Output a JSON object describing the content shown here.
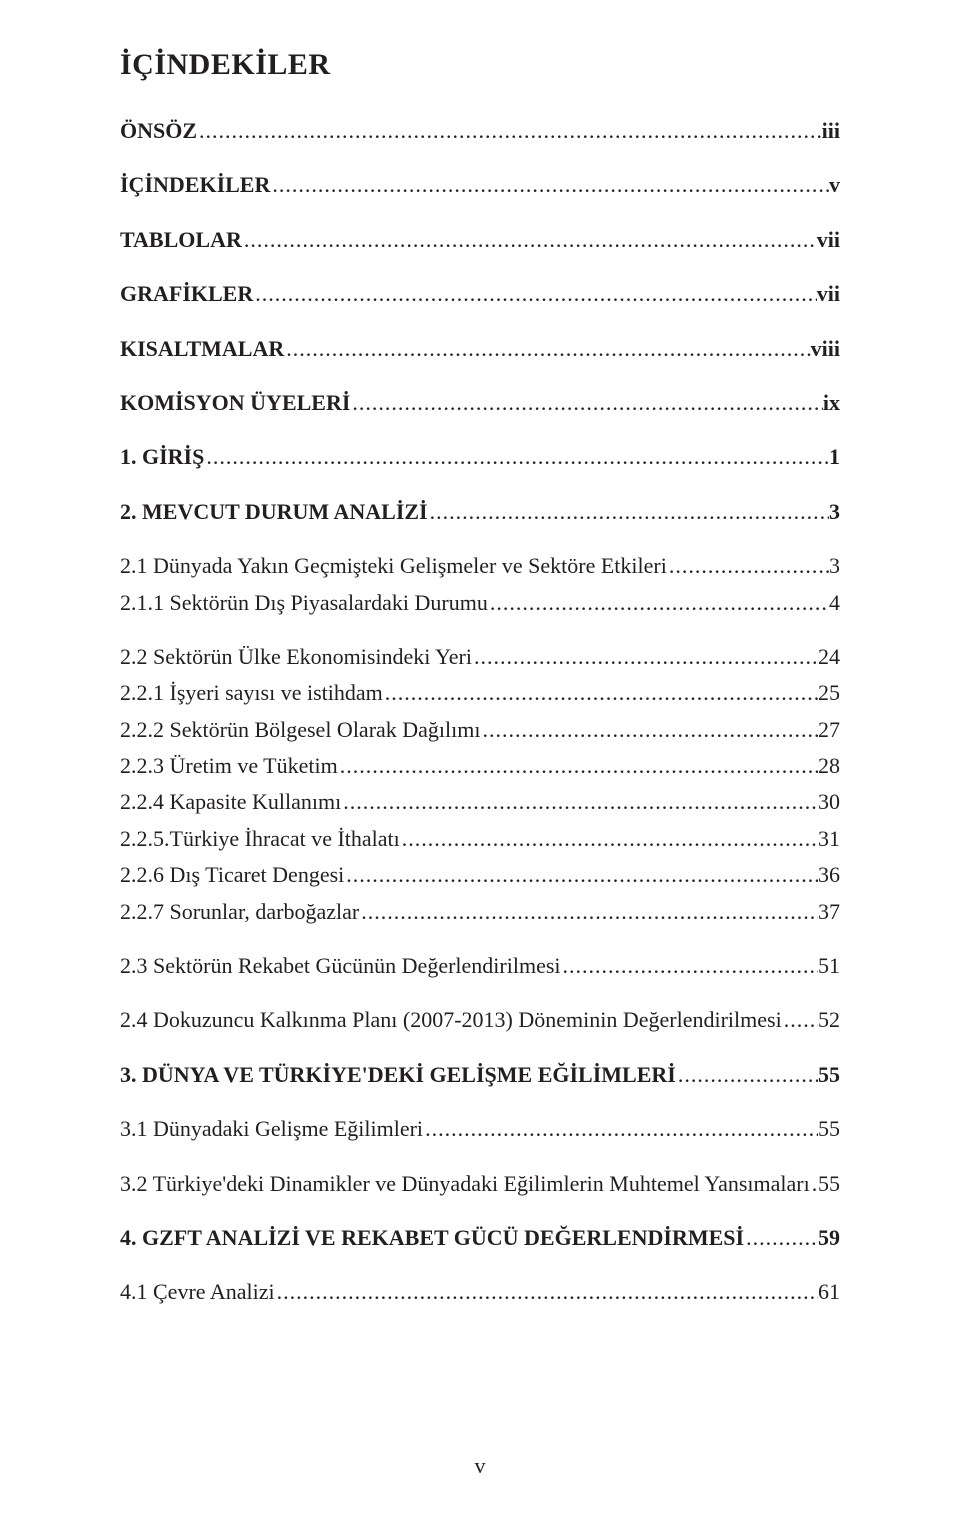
{
  "title": "İÇİNDEKİLER",
  "page_number": "v",
  "leader_char": ".",
  "colors": {
    "text": "#231f20",
    "background": "#ffffff"
  },
  "typography": {
    "font_family": "Times New Roman",
    "title_fontsize_pt": 22,
    "body_fontsize_pt": 16
  },
  "entries": [
    {
      "label": "ÖNSÖZ",
      "page": "iii",
      "bold": true,
      "group_break_after": true
    },
    {
      "label": "İÇİNDEKİLER",
      "page": "v",
      "bold": true,
      "group_break_after": true
    },
    {
      "label": "TABLOLAR",
      "page": "vii",
      "bold": true,
      "group_break_after": true
    },
    {
      "label": "GRAFİKLER",
      "page": "vii",
      "bold": true,
      "group_break_after": true
    },
    {
      "label": "KISALTMALAR",
      "page": "viii",
      "bold": true,
      "group_break_after": true
    },
    {
      "label": "KOMİSYON ÜYELERİ",
      "page": "ix",
      "bold": true,
      "group_break_after": true
    },
    {
      "label": "1. GİRİŞ",
      "page": "1",
      "bold": true,
      "group_break_after": true
    },
    {
      "label": "2. MEVCUT DURUM ANALİZİ",
      "page": "3",
      "bold": true,
      "group_break_after": true
    },
    {
      "label": "2.1 Dünyada Yakın Geçmişteki Gelişmeler ve Sektöre Etkileri",
      "page": "3",
      "bold": false,
      "group_break_after": false
    },
    {
      "label": "2.1.1 Sektörün Dış Piyasalardaki Durumu",
      "page": "4",
      "bold": false,
      "group_break_after": true
    },
    {
      "label": "2.2 Sektörün Ülke Ekonomisindeki Yeri",
      "page": "24",
      "bold": false,
      "group_break_after": false
    },
    {
      "label": "2.2.1 İşyeri sayısı ve istihdam",
      "page": "25",
      "bold": false,
      "group_break_after": false
    },
    {
      "label": "2.2.2 Sektörün Bölgesel Olarak Dağılımı",
      "page": "27",
      "bold": false,
      "group_break_after": false
    },
    {
      "label": "2.2.3 Üretim ve Tüketim",
      "page": "28",
      "bold": false,
      "group_break_after": false
    },
    {
      "label": "2.2.4 Kapasite Kullanımı",
      "page": "30",
      "bold": false,
      "group_break_after": false
    },
    {
      "label": "2.2.5.Türkiye İhracat ve İthalatı",
      "page": "31",
      "bold": false,
      "group_break_after": false
    },
    {
      "label": "2.2.6 Dış Ticaret Dengesi",
      "page": "36",
      "bold": false,
      "group_break_after": false
    },
    {
      "label": "2.2.7 Sorunlar, darboğazlar",
      "page": "37",
      "bold": false,
      "group_break_after": true
    },
    {
      "label": "2.3 Sektörün Rekabet Gücünün Değerlendirilmesi",
      "page": "51",
      "bold": false,
      "group_break_after": true
    },
    {
      "label": "2.4 Dokuzuncu Kalkınma Planı (2007-2013) Döneminin Değerlendirilmesi",
      "page": "52",
      "bold": false,
      "group_break_after": true
    },
    {
      "label": "3. DÜNYA VE TÜRKİYE'DEKİ GELİŞME EĞİLİMLERİ",
      "page": "55",
      "bold": true,
      "group_break_after": true
    },
    {
      "label": "3.1 Dünyadaki Gelişme Eğilimleri",
      "page": "55",
      "bold": false,
      "group_break_after": true
    },
    {
      "label": "3.2 Türkiye'deki Dinamikler ve Dünyadaki Eğilimlerin Muhtemel Yansımaları",
      "page": "55",
      "bold": false,
      "group_break_after": true
    },
    {
      "label": "4. GZFT ANALİZİ VE REKABET GÜCÜ DEĞERLENDİRMESİ",
      "page": "59",
      "bold": true,
      "group_break_after": true
    },
    {
      "label": "4.1 Çevre Analizi",
      "page": "61",
      "bold": false,
      "group_break_after": true
    }
  ]
}
